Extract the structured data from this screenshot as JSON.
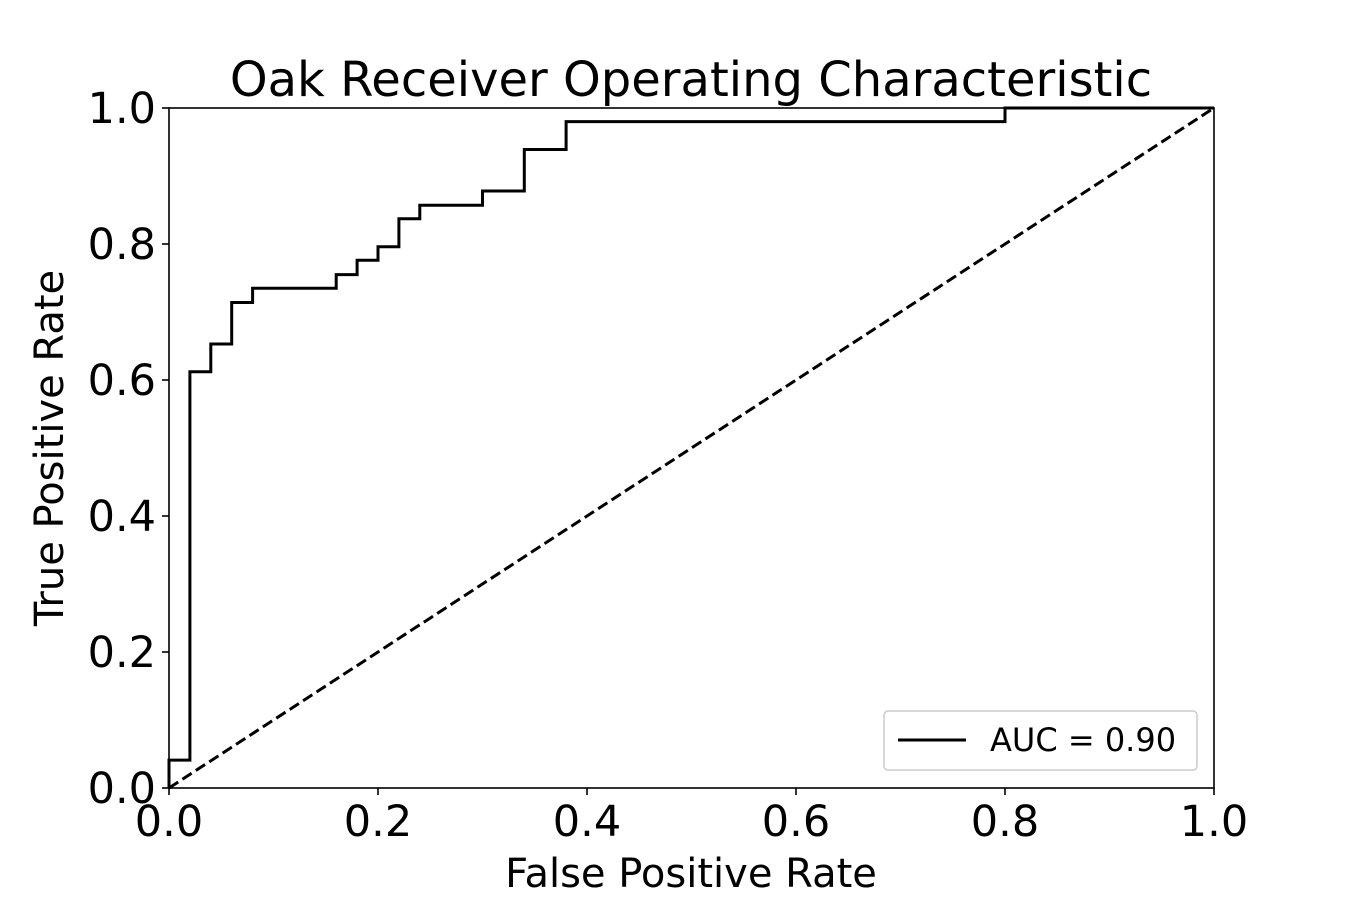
{
  "chart_data": {
    "type": "line",
    "title": "Oak Receiver Operating Characteristic",
    "xlabel": "False Positive Rate",
    "ylabel": "True Positive Rate",
    "xlim": [
      0.0,
      1.0
    ],
    "ylim": [
      0.0,
      1.0
    ],
    "x_ticks": [
      0.0,
      0.2,
      0.4,
      0.6,
      0.8,
      1.0
    ],
    "y_ticks": [
      0.0,
      0.2,
      0.4,
      0.6,
      0.8,
      1.0
    ],
    "x_tick_labels": [
      "0.0",
      "0.2",
      "0.4",
      "0.6",
      "0.8",
      "1.0"
    ],
    "y_tick_labels": [
      "0.0",
      "0.2",
      "0.4",
      "0.6",
      "0.8",
      "1.0"
    ],
    "grid": false,
    "legend_position": "lower-right",
    "series": [
      {
        "name": "AUC = 0.90",
        "style": "solid",
        "color": "#000000",
        "step": true,
        "x": [
          0.0,
          0.0,
          0.02,
          0.02,
          0.04,
          0.04,
          0.06,
          0.06,
          0.08,
          0.08,
          0.16,
          0.16,
          0.18,
          0.18,
          0.2,
          0.2,
          0.22,
          0.22,
          0.24,
          0.24,
          0.3,
          0.3,
          0.34,
          0.34,
          0.38,
          0.38,
          0.8,
          0.8,
          1.0
        ],
        "y": [
          0.0,
          0.041,
          0.041,
          0.612,
          0.612,
          0.653,
          0.653,
          0.714,
          0.714,
          0.735,
          0.735,
          0.755,
          0.755,
          0.776,
          0.776,
          0.796,
          0.796,
          0.837,
          0.837,
          0.857,
          0.857,
          0.878,
          0.878,
          0.939,
          0.939,
          0.98,
          0.98,
          1.0,
          1.0
        ]
      },
      {
        "style": "dashed",
        "color": "#000000",
        "x": [
          0.0,
          1.0
        ],
        "y": [
          0.0,
          1.0
        ]
      }
    ]
  }
}
